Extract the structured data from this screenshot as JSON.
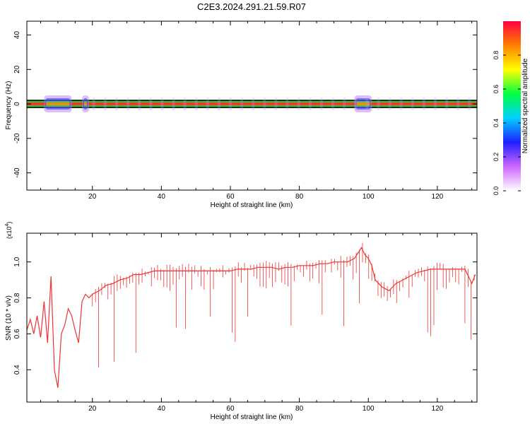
{
  "title": "C2E3.2024.291.21.59.R07",
  "chart_data": [
    {
      "type": "heatmap",
      "xlabel": "Height of straight line (km)",
      "ylabel": "Frequency (Hz)",
      "xlim": [
        1,
        131.5
      ],
      "ylim": [
        -50,
        48
      ],
      "xticks": [
        20,
        40,
        60,
        80,
        100,
        120
      ],
      "yticks": [
        -40,
        -20,
        0,
        20,
        40
      ],
      "colorbar": {
        "label": "Normalized spectral amplitude",
        "range": [
          0,
          1
        ],
        "ticks": [
          "0.0",
          "0.2",
          "0.4",
          "0.6",
          "0.8"
        ],
        "colors": [
          "#ffffff",
          "#cc66ff",
          "#2020ff",
          "#00d0ff",
          "#00ff40",
          "#ffff00",
          "#ff8000",
          "#ff0040"
        ]
      },
      "ridge": {
        "frequency": 0,
        "amplitude": 1.0,
        "spread_regions_km": [
          [
            6,
            14
          ],
          [
            17,
            19
          ],
          [
            96,
            101
          ]
        ]
      }
    },
    {
      "type": "line",
      "xlabel": "Height of straight line (km)",
      "ylabel": "SNR (10 * v/v)",
      "yscale_label": "(x10",
      "yscale_exp": "4",
      "xlim": [
        1,
        131.5
      ],
      "ylim": [
        0.22,
        1.16
      ],
      "xticks": [
        20,
        40,
        60,
        80,
        100,
        120
      ],
      "yticks": [
        0.4,
        0.6,
        0.8,
        1.0
      ],
      "line_color": "#ee3333",
      "series": [
        {
          "x": [
            1,
            2,
            3,
            4,
            5,
            6,
            7,
            8,
            9,
            10,
            11,
            12,
            13,
            14,
            15,
            16,
            17,
            18,
            19,
            20,
            22,
            24,
            26,
            28,
            30,
            32,
            34,
            36,
            38,
            40,
            42,
            44,
            46,
            48,
            50,
            52,
            54,
            56,
            58,
            60,
            62,
            64,
            66,
            68,
            70,
            72,
            74,
            76,
            78,
            80,
            82,
            84,
            86,
            88,
            90,
            92,
            94,
            96,
            97,
            98,
            99,
            100,
            101,
            102,
            104,
            106,
            108,
            110,
            112,
            114,
            116,
            118,
            120,
            122,
            124,
            126,
            128,
            129,
            130,
            131
          ],
          "y": [
            0.62,
            0.68,
            0.6,
            0.7,
            0.58,
            0.78,
            0.55,
            0.92,
            0.4,
            0.3,
            0.6,
            0.65,
            0.74,
            0.7,
            0.62,
            0.55,
            0.78,
            0.82,
            0.8,
            0.82,
            0.84,
            0.87,
            0.88,
            0.9,
            0.91,
            0.93,
            0.93,
            0.94,
            0.95,
            0.95,
            0.95,
            0.95,
            0.95,
            0.95,
            0.95,
            0.95,
            0.95,
            0.95,
            0.95,
            0.95,
            0.96,
            0.96,
            0.96,
            0.97,
            0.97,
            0.97,
            0.96,
            0.97,
            0.97,
            0.98,
            0.98,
            0.98,
            0.99,
            0.99,
            1.0,
            1.0,
            1.0,
            1.02,
            1.05,
            1.08,
            1.04,
            1.02,
            0.98,
            0.9,
            0.86,
            0.84,
            0.88,
            0.9,
            0.92,
            0.94,
            0.95,
            0.96,
            0.96,
            0.96,
            0.96,
            0.96,
            0.96,
            0.92,
            0.88,
            0.93
          ]
        }
      ]
    }
  ]
}
